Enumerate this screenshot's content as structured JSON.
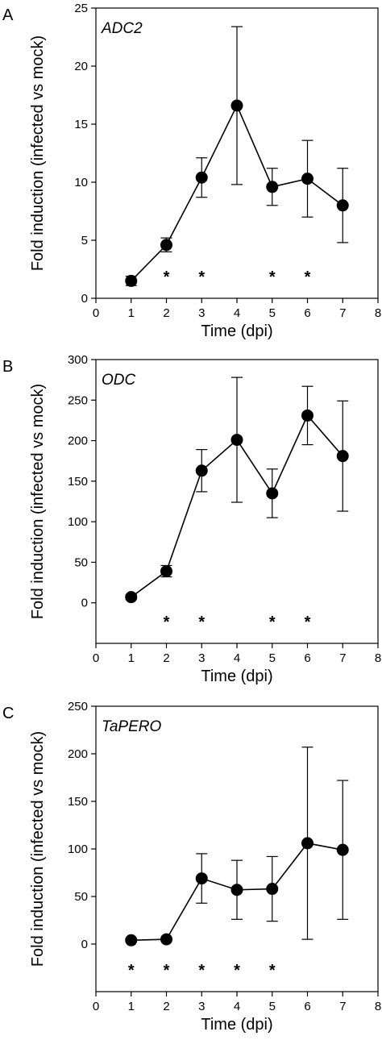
{
  "colors": {
    "ink": "#000000",
    "background": "#ffffff"
  },
  "chart_data": [
    {
      "type": "line",
      "panel_letter": "A",
      "title": "ADC2",
      "xlabel": "Time (dpi)",
      "ylabel": "Fold induction (infected vs mock)",
      "xlim": [
        0,
        8
      ],
      "ylim": [
        0,
        25
      ],
      "xticks": [
        0,
        1,
        2,
        3,
        4,
        5,
        6,
        7,
        8
      ],
      "yticks": [
        0,
        5,
        10,
        15,
        20,
        25
      ],
      "grid": false,
      "series": [
        {
          "x": [
            1,
            2,
            3,
            4,
            5,
            6,
            7
          ],
          "y": [
            1.5,
            4.6,
            10.4,
            16.6,
            9.6,
            10.3,
            8.0
          ],
          "yerr": [
            0.4,
            0.6,
            1.7,
            6.8,
            1.6,
            3.3,
            3.2
          ]
        }
      ],
      "significance": {
        "marker": "*",
        "x": [
          2,
          3,
          5,
          6
        ]
      }
    },
    {
      "type": "line",
      "panel_letter": "B",
      "title": "ODC",
      "xlabel": "Time (dpi)",
      "ylabel": "Fold induction (infected vs mock)",
      "xlim": [
        0,
        8
      ],
      "ylim": [
        -50,
        300
      ],
      "xticks": [
        0,
        1,
        2,
        3,
        4,
        5,
        6,
        7,
        8
      ],
      "yticks": [
        0,
        50,
        100,
        150,
        200,
        250,
        300
      ],
      "grid": false,
      "series": [
        {
          "x": [
            1,
            2,
            3,
            4,
            5,
            6,
            7
          ],
          "y": [
            7,
            39,
            163,
            201,
            135,
            231,
            181
          ],
          "yerr": [
            3,
            7,
            26,
            77,
            30,
            36,
            68
          ]
        }
      ],
      "significance": {
        "marker": "*",
        "x": [
          2,
          3,
          5,
          6
        ]
      }
    },
    {
      "type": "line",
      "panel_letter": "C",
      "title": "TaPERO",
      "xlabel": "Time (dpi)",
      "ylabel": "Fold induction (infected vs mock)",
      "xlim": [
        0,
        8
      ],
      "ylim": [
        -50,
        250
      ],
      "xticks": [
        0,
        1,
        2,
        3,
        4,
        5,
        6,
        7,
        8
      ],
      "yticks": [
        0,
        50,
        100,
        150,
        200,
        250
      ],
      "grid": false,
      "series": [
        {
          "x": [
            1,
            2,
            3,
            4,
            5,
            6,
            7
          ],
          "y": [
            4,
            5,
            69,
            57,
            58,
            106,
            99
          ],
          "yerr": [
            2,
            2,
            26,
            31,
            34,
            101,
            73
          ]
        }
      ],
      "significance": {
        "marker": "*",
        "x": [
          1,
          2,
          3,
          4,
          5
        ]
      }
    }
  ]
}
